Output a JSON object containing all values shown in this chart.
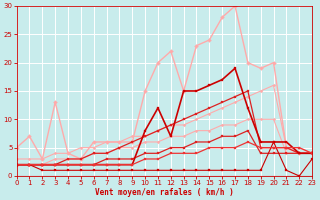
{
  "bg_color": "#c8ecec",
  "grid_color": "#ffffff",
  "xlabel": "Vent moyen/en rafales ( km/h )",
  "xlabel_color": "#cc0000",
  "tick_color": "#cc0000",
  "xmin": 0,
  "xmax": 23,
  "ymin": 0,
  "ymax": 30,
  "xticks": [
    0,
    1,
    2,
    3,
    4,
    5,
    6,
    7,
    8,
    9,
    10,
    11,
    12,
    13,
    14,
    15,
    16,
    17,
    18,
    19,
    20,
    21,
    22,
    23
  ],
  "yticks": [
    0,
    5,
    10,
    15,
    20,
    25,
    30
  ],
  "lines": [
    {
      "x": [
        0,
        1,
        2,
        3,
        4,
        5,
        6,
        7,
        8,
        9,
        10,
        11,
        12,
        13,
        14,
        15,
        16,
        17,
        18,
        19,
        20,
        21,
        22,
        23
      ],
      "y": [
        2,
        2,
        2,
        3,
        3,
        3,
        4,
        4,
        5,
        5,
        6,
        6,
        7,
        7,
        8,
        8,
        9,
        9,
        10,
        10,
        10,
        4,
        4,
        4
      ],
      "color": "#ffaaaa",
      "lw": 0.8,
      "marker": "D",
      "ms": 1.5
    },
    {
      "x": [
        0,
        1,
        2,
        3,
        4,
        5,
        6,
        7,
        8,
        9,
        10,
        11,
        12,
        13,
        14,
        15,
        16,
        17,
        18,
        19,
        20,
        21,
        22,
        23
      ],
      "y": [
        3,
        3,
        3,
        4,
        4,
        5,
        5,
        6,
        6,
        7,
        7,
        8,
        9,
        9,
        10,
        11,
        12,
        13,
        14,
        15,
        16,
        5,
        5,
        4
      ],
      "color": "#ffaaaa",
      "lw": 0.8,
      "marker": "D",
      "ms": 1.5
    },
    {
      "x": [
        0,
        1,
        2,
        3,
        4,
        5,
        6,
        7,
        8,
        9,
        10,
        11,
        12,
        13,
        14,
        15,
        16,
        17,
        18,
        19,
        20,
        21,
        22,
        23
      ],
      "y": [
        5,
        7,
        3,
        13,
        4,
        3,
        6,
        6,
        6,
        6,
        15,
        20,
        22,
        15,
        23,
        24,
        28,
        30,
        20,
        19,
        20,
        5,
        4,
        4
      ],
      "color": "#ffaaaa",
      "lw": 1.0,
      "marker": "D",
      "ms": 2
    },
    {
      "x": [
        0,
        1,
        2,
        3,
        4,
        5,
        6,
        7,
        8,
        9,
        10,
        11,
        12,
        13,
        14,
        15,
        16,
        17,
        18,
        19,
        20,
        21,
        22,
        23
      ],
      "y": [
        2,
        2,
        2,
        2,
        2,
        2,
        2,
        3,
        3,
        3,
        4,
        4,
        5,
        5,
        6,
        6,
        7,
        7,
        8,
        4,
        4,
        4,
        4,
        4
      ],
      "color": "#dd2222",
      "lw": 0.9,
      "marker": "s",
      "ms": 1.5
    },
    {
      "x": [
        0,
        1,
        2,
        3,
        4,
        5,
        6,
        7,
        8,
        9,
        10,
        11,
        12,
        13,
        14,
        15,
        16,
        17,
        18,
        19,
        20,
        21,
        22,
        23
      ],
      "y": [
        2,
        2,
        2,
        2,
        3,
        3,
        4,
        4,
        5,
        6,
        7,
        8,
        9,
        10,
        11,
        12,
        13,
        14,
        15,
        5,
        5,
        5,
        4,
        4
      ],
      "color": "#dd2222",
      "lw": 0.9,
      "marker": "s",
      "ms": 1.5
    },
    {
      "x": [
        0,
        1,
        2,
        3,
        4,
        5,
        6,
        7,
        8,
        9,
        10,
        11,
        12,
        13,
        14,
        15,
        16,
        17,
        18,
        19,
        20,
        21,
        22,
        23
      ],
      "y": [
        2,
        2,
        2,
        2,
        2,
        2,
        2,
        2,
        2,
        2,
        8,
        12,
        7,
        15,
        15,
        16,
        17,
        19,
        12,
        6,
        6,
        6,
        4,
        4
      ],
      "color": "#cc0000",
      "lw": 1.2,
      "marker": "s",
      "ms": 2
    },
    {
      "x": [
        0,
        1,
        2,
        3,
        4,
        5,
        6,
        7,
        8,
        9,
        10,
        11,
        12,
        13,
        14,
        15,
        16,
        17,
        18,
        19,
        20,
        21,
        22,
        23
      ],
      "y": [
        2,
        2,
        1,
        1,
        1,
        1,
        1,
        1,
        1,
        1,
        1,
        1,
        1,
        1,
        1,
        1,
        1,
        1,
        1,
        1,
        6,
        1,
        0,
        3
      ],
      "color": "#cc0000",
      "lw": 0.8,
      "marker": "s",
      "ms": 1.5
    },
    {
      "x": [
        0,
        1,
        2,
        3,
        4,
        5,
        6,
        7,
        8,
        9,
        10,
        11,
        12,
        13,
        14,
        15,
        16,
        17,
        18,
        19,
        20,
        21,
        22,
        23
      ],
      "y": [
        2,
        2,
        2,
        2,
        2,
        2,
        2,
        2,
        2,
        2,
        3,
        3,
        4,
        4,
        4,
        5,
        5,
        5,
        6,
        5,
        5,
        5,
        5,
        4
      ],
      "color": "#ee3333",
      "lw": 0.9,
      "marker": "s",
      "ms": 1.5
    }
  ]
}
